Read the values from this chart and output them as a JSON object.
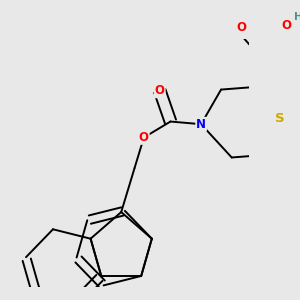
{
  "bg_color": "#e8e8e8",
  "atom_colors": {
    "O": "#ff0000",
    "N": "#0000ff",
    "S": "#ccaa00",
    "H": "#4a9090",
    "C": "#000000"
  },
  "bond_color": "#000000",
  "bond_width": 1.4,
  "font_size_atoms": 8.5,
  "figsize": [
    3.0,
    3.0
  ],
  "dpi": 100
}
